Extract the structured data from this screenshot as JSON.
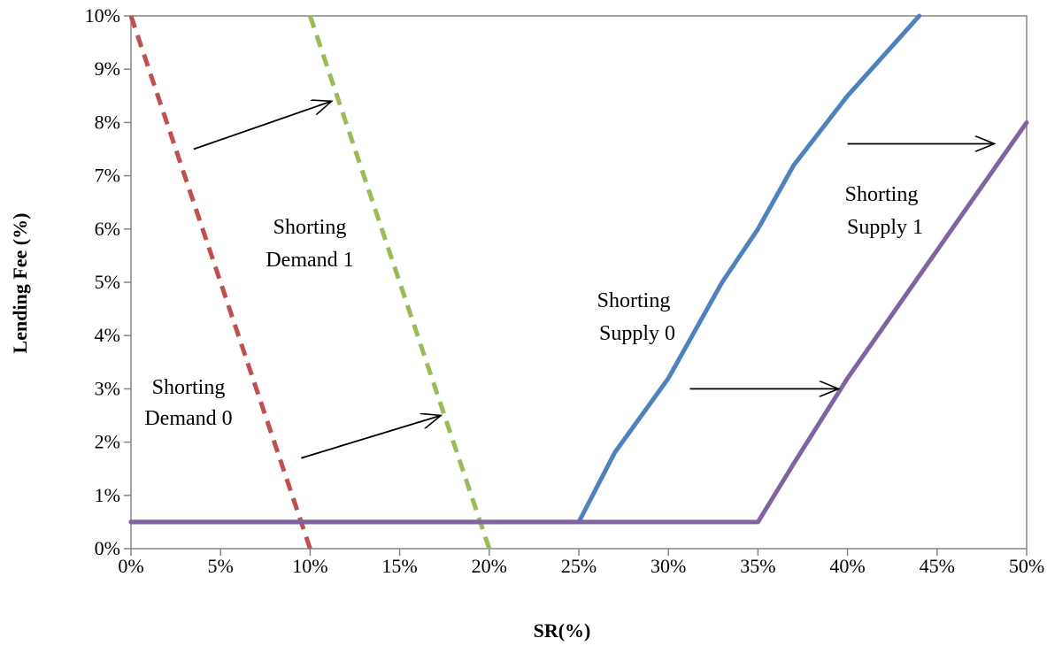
{
  "chart_data": {
    "type": "line",
    "xlabel": "SR(%)",
    "ylabel": "Lending Fee (%)",
    "xlim": [
      0,
      50
    ],
    "ylim": [
      0,
      10
    ],
    "x_ticks": [
      "0%",
      "5%",
      "10%",
      "15%",
      "20%",
      "25%",
      "30%",
      "35%",
      "40%",
      "45%",
      "50%"
    ],
    "y_ticks": [
      "0%",
      "1%",
      "2%",
      "3%",
      "4%",
      "5%",
      "6%",
      "7%",
      "8%",
      "9%",
      "10%"
    ],
    "grid": false,
    "series": [
      {
        "name": "Shorting Demand 0",
        "style": "dashed",
        "color": "#c0504d",
        "points": [
          [
            0,
            10
          ],
          [
            10,
            0
          ]
        ]
      },
      {
        "name": "Shorting Demand 1",
        "style": "dashed",
        "color": "#9bbb59",
        "points": [
          [
            10,
            10
          ],
          [
            20,
            0
          ]
        ]
      },
      {
        "name": "Shorting Supply 0",
        "style": "solid",
        "color": "#4f81bd",
        "points": [
          [
            0,
            0.5
          ],
          [
            25,
            0.5
          ],
          [
            27,
            1.8
          ],
          [
            30,
            3.2
          ],
          [
            33,
            5
          ],
          [
            35,
            6
          ],
          [
            37,
            7.2
          ],
          [
            40,
            8.5
          ],
          [
            44,
            10
          ]
        ]
      },
      {
        "name": "Shorting Supply 1",
        "style": "solid",
        "color": "#8064a2",
        "points": [
          [
            0,
            0.5
          ],
          [
            35,
            0.5
          ],
          [
            37,
            1.6
          ],
          [
            40,
            3.2
          ],
          [
            45,
            5.6
          ],
          [
            50,
            8
          ]
        ]
      }
    ],
    "annotations": [
      {
        "id": "demand0",
        "line1": "Shorting",
        "line2": "Demand  0"
      },
      {
        "id": "demand1",
        "line1": "Shorting",
        "line2": "Demand  1"
      },
      {
        "id": "supply0",
        "line1": "Shorting",
        "line2": "Supply  0"
      },
      {
        "id": "supply1",
        "line1": "Shorting",
        "line2": "Supply  1"
      }
    ],
    "arrows": [
      {
        "from": [
          3.5,
          7.5
        ],
        "to": [
          11.2,
          8.4
        ]
      },
      {
        "from": [
          9.5,
          1.7
        ],
        "to": [
          17.3,
          2.5
        ]
      },
      {
        "from": [
          31.2,
          3.0
        ],
        "to": [
          39.5,
          3.0
        ]
      },
      {
        "from": [
          40,
          7.6
        ],
        "to": [
          48.2,
          7.6
        ]
      }
    ]
  }
}
